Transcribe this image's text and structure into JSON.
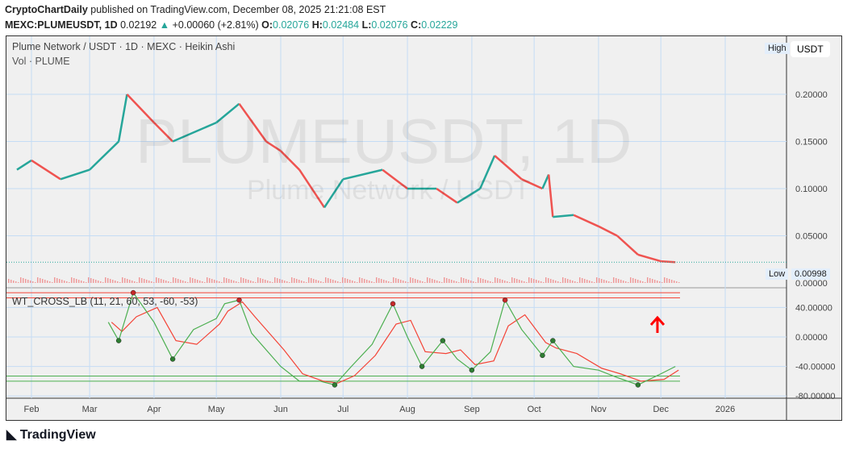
{
  "header": {
    "publisher": "CryptoChartDaily",
    "published_text": "published on TradingView.com, December 08, 2025 21:21:08 EST",
    "symbol": "MEXC:PLUMEUSDT, 1D",
    "last": "0.02192",
    "change": "+0.00060 (+2.81%)",
    "o": "0.02076",
    "h": "0.02484",
    "l": "0.02076",
    "c": "0.02229"
  },
  "legend": {
    "title": "Plume Network / USDT · 1D · MEXC · Heikin Ashi",
    "vol": "Vol · PLUME",
    "indicator": "WT_CROSS_LB (11, 21, 60, 53, -60, -53)"
  },
  "watermark": {
    "main": "PLUMEUSDT, 1D",
    "sub": "Plume Network / USDT"
  },
  "scale": {
    "currency": "USDT",
    "high_tag": "High",
    "low_tag": "Low",
    "low_value": "0.00998"
  },
  "footer": {
    "brand": "TradingView"
  },
  "colors": {
    "up": "#26a69a",
    "down": "#ef5350",
    "wt1": "#4caf50",
    "wt2": "#f44336",
    "arrow": "#f00"
  },
  "chart_data": [
    {
      "type": "line",
      "title": "Plume Network / USDT · 1D · MEXC · Heikin Ashi",
      "ylim": [
        0,
        0.235
      ],
      "y_ticks": [
        "0.20000",
        "0.15000",
        "0.10000",
        "0.05000",
        "0.00000"
      ],
      "x_ticks": [
        "Feb",
        "Mar",
        "Apr",
        "May",
        "Jun",
        "Jul",
        "Aug",
        "Sep",
        "Oct",
        "Nov",
        "Dec",
        "2026"
      ],
      "x": [
        "2025-01-25",
        "2025-02-01",
        "2025-02-15",
        "2025-03-01",
        "2025-03-15",
        "2025-03-19",
        "2025-04-01",
        "2025-04-10",
        "2025-05-01",
        "2025-05-12",
        "2025-05-25",
        "2025-06-01",
        "2025-06-10",
        "2025-06-22",
        "2025-07-01",
        "2025-07-20",
        "2025-08-01",
        "2025-08-15",
        "2025-08-25",
        "2025-09-05",
        "2025-09-12",
        "2025-09-25",
        "2025-10-05",
        "2025-10-08",
        "2025-10-10",
        "2025-10-20",
        "2025-11-01",
        "2025-11-10",
        "2025-11-20",
        "2025-12-01",
        "2025-12-08"
      ],
      "y": [
        0.12,
        0.13,
        0.11,
        0.12,
        0.15,
        0.2,
        0.17,
        0.15,
        0.17,
        0.19,
        0.15,
        0.14,
        0.12,
        0.08,
        0.11,
        0.12,
        0.1,
        0.1,
        0.085,
        0.1,
        0.135,
        0.11,
        0.1,
        0.115,
        0.07,
        0.072,
        0.06,
        0.05,
        0.03,
        0.023,
        0.022
      ]
    },
    {
      "type": "line",
      "title": "WT_CROSS_LB (11, 21, 60, 53, -60, -53)",
      "ylim": [
        -85,
        60
      ],
      "y_ticks": [
        "40.00000",
        "0.00000",
        "-40.00000",
        "-80.00000"
      ],
      "levels": [
        60,
        53,
        -60,
        -53
      ],
      "x": [
        "2025-03-10",
        "2025-03-15",
        "2025-03-22",
        "2025-04-01",
        "2025-04-10",
        "2025-04-20",
        "2025-05-01",
        "2025-05-05",
        "2025-05-12",
        "2025-05-18",
        "2025-06-01",
        "2025-06-10",
        "2025-06-20",
        "2025-06-27",
        "2025-07-05",
        "2025-07-15",
        "2025-07-25",
        "2025-08-01",
        "2025-08-08",
        "2025-08-18",
        "2025-08-25",
        "2025-09-01",
        "2025-09-10",
        "2025-09-17",
        "2025-09-25",
        "2025-10-05",
        "2025-10-10",
        "2025-10-20",
        "2025-11-01",
        "2025-11-10",
        "2025-11-20",
        "2025-12-01",
        "2025-12-08"
      ],
      "wt1": [
        20,
        -5,
        60,
        20,
        -30,
        10,
        25,
        45,
        50,
        5,
        -40,
        -60,
        -60,
        -65,
        -40,
        -10,
        45,
        0,
        -40,
        -5,
        -30,
        -45,
        -20,
        50,
        10,
        -25,
        -5,
        -40,
        -45,
        -55,
        -65,
        -50,
        -40
      ]
    }
  ]
}
